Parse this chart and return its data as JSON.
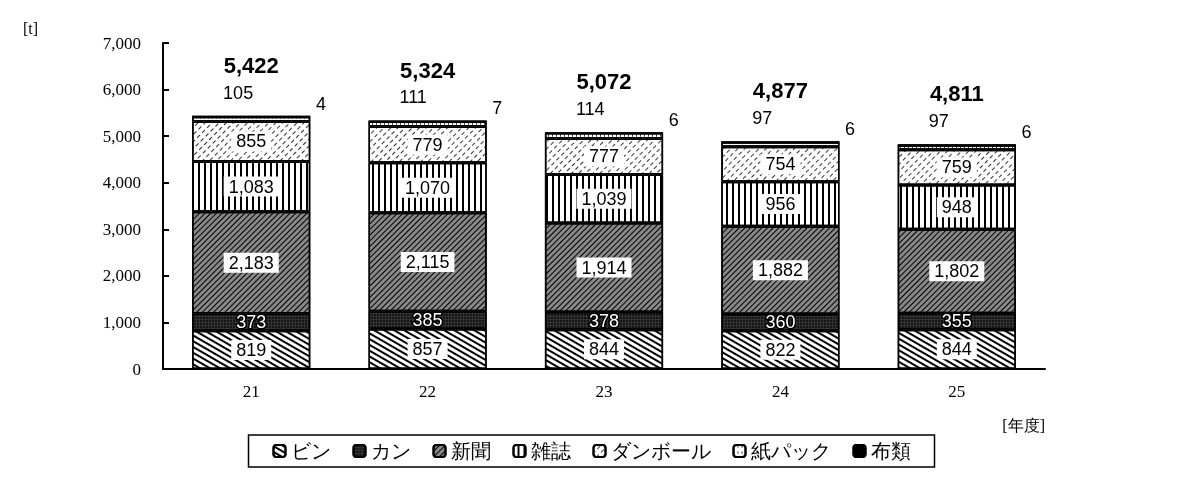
{
  "chart_data": {
    "type": "bar",
    "stacked": true,
    "xlabel": "[年度]",
    "ylabel": "[t]",
    "categories": [
      "21",
      "22",
      "23",
      "24",
      "25"
    ],
    "series": [
      {
        "name": "ビン",
        "color": "#ffffff",
        "values": [
          819,
          857,
          844,
          822,
          844
        ],
        "value_labels": [
          "819",
          "857",
          "844",
          "822",
          "844"
        ]
      },
      {
        "name": "カン",
        "color": "#333333",
        "values": [
          373,
          385,
          378,
          360,
          355
        ],
        "value_labels": [
          "373",
          "385",
          "378",
          "360",
          "355"
        ]
      },
      {
        "name": "新聞",
        "color": "#888888",
        "values": [
          2183,
          2115,
          1914,
          1882,
          1802
        ],
        "value_labels": [
          "2,183",
          "2,115",
          "1,914",
          "1,882",
          "1,802"
        ]
      },
      {
        "name": "雑誌",
        "color": "#ffffff",
        "values": [
          1083,
          1070,
          1039,
          956,
          948
        ],
        "value_labels": [
          "1,083",
          "1,070",
          "1,039",
          "956",
          "948"
        ]
      },
      {
        "name": "ダンボール",
        "color": "#ffffff",
        "values": [
          855,
          779,
          777,
          754,
          759
        ],
        "value_labels": [
          "855",
          "779",
          "777",
          "754",
          "759"
        ]
      },
      {
        "name": "紙パック",
        "color": "#ffffff",
        "values": [
          105,
          111,
          114,
          97,
          97
        ],
        "value_labels": [
          "105",
          "111",
          "114",
          "97",
          "97"
        ]
      },
      {
        "name": "布類",
        "color": "#000000",
        "values": [
          4,
          7,
          6,
          6,
          6
        ],
        "value_labels": [
          "4",
          "7",
          "6",
          "6",
          "6"
        ]
      }
    ],
    "ylim": [
      0,
      7000
    ],
    "yticks": [
      0,
      {
        "value": 1000,
        "label": "1,000"
      },
      {
        "value": 2000,
        "label": "2,000"
      },
      {
        "value": 3000,
        "label": "3,000"
      },
      {
        "value": 4000,
        "label": "4,000"
      },
      {
        "value": 5000,
        "label": "5,000"
      },
      {
        "value": 6000,
        "label": "6,000"
      },
      {
        "value": 7000,
        "label": "7,000"
      }
    ],
    "totals": [
      "5,422",
      "5,324",
      "5,072",
      "4,877",
      "4,811"
    ],
    "grid": false,
    "legend": "bottom"
  }
}
